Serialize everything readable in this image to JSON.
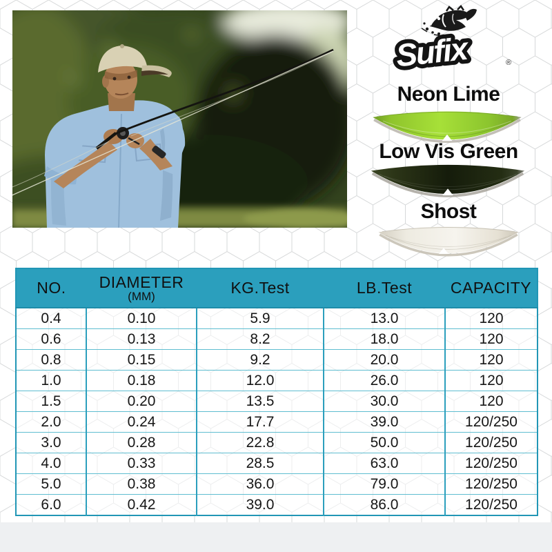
{
  "brand": {
    "name": "Sufix",
    "registered_mark": "®"
  },
  "swatches": {
    "items": [
      {
        "label": "Neon Lime",
        "color": "#9ccc2e"
      },
      {
        "label": "Low Vis Green",
        "color": "#26300f"
      },
      {
        "label": "Shost",
        "color": "#eeeadf"
      }
    ]
  },
  "spec_table": {
    "headers": {
      "no": "NO.",
      "diameter": "DIAMETER",
      "diameter_unit": "(MM)",
      "kg_test": "KG.Test",
      "lb_test": "LB.Test",
      "capacity": "CAPACITY"
    },
    "rows": [
      [
        "0.4",
        "0.10",
        "5.9",
        "13.0",
        "120"
      ],
      [
        "0.6",
        "0.13",
        "8.2",
        "18.0",
        "120"
      ],
      [
        "0.8",
        "0.15",
        "9.2",
        "20.0",
        "120"
      ],
      [
        "1.0",
        "0.18",
        "12.0",
        "26.0",
        "120"
      ],
      [
        "1.5",
        "0.20",
        "13.5",
        "30.0",
        "120"
      ],
      [
        "2.0",
        "0.24",
        "17.7",
        "39.0",
        "120/250"
      ],
      [
        "3.0",
        "0.28",
        "22.8",
        "50.0",
        "120/250"
      ],
      [
        "4.0",
        "0.33",
        "28.5",
        "63.0",
        "120/250"
      ],
      [
        "5.0",
        "0.38",
        "36.0",
        "79.0",
        "120/250"
      ],
      [
        "6.0",
        "0.42",
        "39.0",
        "86.0",
        "120/250"
      ]
    ]
  },
  "theme": {
    "table_header_bg": "#2b9fbd",
    "table_border": "#2196b5",
    "page_bottom_band": "#eef0f2"
  }
}
